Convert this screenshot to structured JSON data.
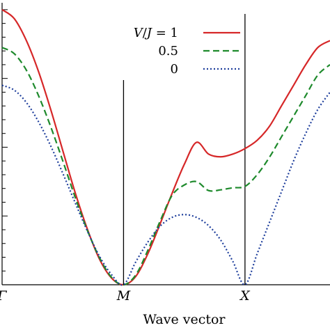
{
  "chart_data": {
    "type": "line",
    "xlabel": "Wave vector",
    "ylabel": "",
    "x_ticks": [
      {
        "label": "Γ",
        "x": 0
      },
      {
        "label": "M",
        "x": 1
      },
      {
        "label": "X",
        "x": 2
      }
    ],
    "vertical_lines_at": [
      1,
      2
    ],
    "xlim": [
      0,
      2.7
    ],
    "ylim": [
      0,
      4.1
    ],
    "grid": false,
    "legend": {
      "placement": "top-right",
      "title_prefix": "V/J = ",
      "entries": [
        "1",
        "0.5",
        "0"
      ]
    },
    "series": [
      {
        "name": "1",
        "color": "#d62728",
        "style": "solid",
        "x": [
          0,
          0.1,
          0.2,
          0.3,
          0.4,
          0.5,
          0.6,
          0.7,
          0.8,
          0.9,
          1.0,
          1.1,
          1.2,
          1.3,
          1.4,
          1.5,
          1.6,
          1.7,
          1.8,
          1.9,
          2.0,
          2.1,
          2.2,
          2.3,
          2.4,
          2.5,
          2.6,
          2.7
        ],
        "y": [
          4.0,
          3.87,
          3.55,
          3.1,
          2.55,
          1.95,
          1.35,
          0.82,
          0.38,
          0.1,
          0.0,
          0.12,
          0.45,
          0.88,
          1.33,
          1.75,
          2.07,
          1.9,
          1.86,
          1.9,
          1.98,
          2.1,
          2.3,
          2.6,
          2.9,
          3.2,
          3.45,
          3.55
        ]
      },
      {
        "name": "0.5",
        "color": "#1e8a2c",
        "style": "dashed",
        "x": [
          0,
          0.1,
          0.2,
          0.3,
          0.4,
          0.5,
          0.6,
          0.7,
          0.8,
          0.9,
          1.0,
          1.1,
          1.2,
          1.3,
          1.4,
          1.5,
          1.6,
          1.7,
          1.8,
          1.9,
          2.0,
          2.1,
          2.2,
          2.3,
          2.4,
          2.5,
          2.6,
          2.7
        ],
        "y": [
          3.45,
          3.36,
          3.12,
          2.75,
          2.3,
          1.8,
          1.28,
          0.8,
          0.4,
          0.11,
          0.0,
          0.14,
          0.5,
          0.92,
          1.3,
          1.45,
          1.5,
          1.37,
          1.38,
          1.41,
          1.43,
          1.6,
          1.85,
          2.15,
          2.45,
          2.75,
          3.05,
          3.2
        ]
      },
      {
        "name": "0",
        "color": "#1f3f9c",
        "style": "dotted",
        "x": [
          0,
          0.1,
          0.2,
          0.3,
          0.4,
          0.5,
          0.6,
          0.7,
          0.8,
          0.9,
          1.0,
          1.1,
          1.2,
          1.3,
          1.4,
          1.5,
          1.6,
          1.7,
          1.8,
          1.9,
          2.0,
          2.1,
          2.2,
          2.3,
          2.4,
          2.5,
          2.6,
          2.7
        ],
        "y": [
          2.9,
          2.83,
          2.65,
          2.37,
          2.02,
          1.62,
          1.2,
          0.79,
          0.42,
          0.15,
          0.0,
          0.33,
          0.62,
          0.85,
          0.98,
          1.02,
          0.98,
          0.86,
          0.65,
          0.34,
          0.0,
          0.45,
          0.9,
          1.35,
          1.8,
          2.2,
          2.55,
          2.8
        ]
      }
    ]
  }
}
